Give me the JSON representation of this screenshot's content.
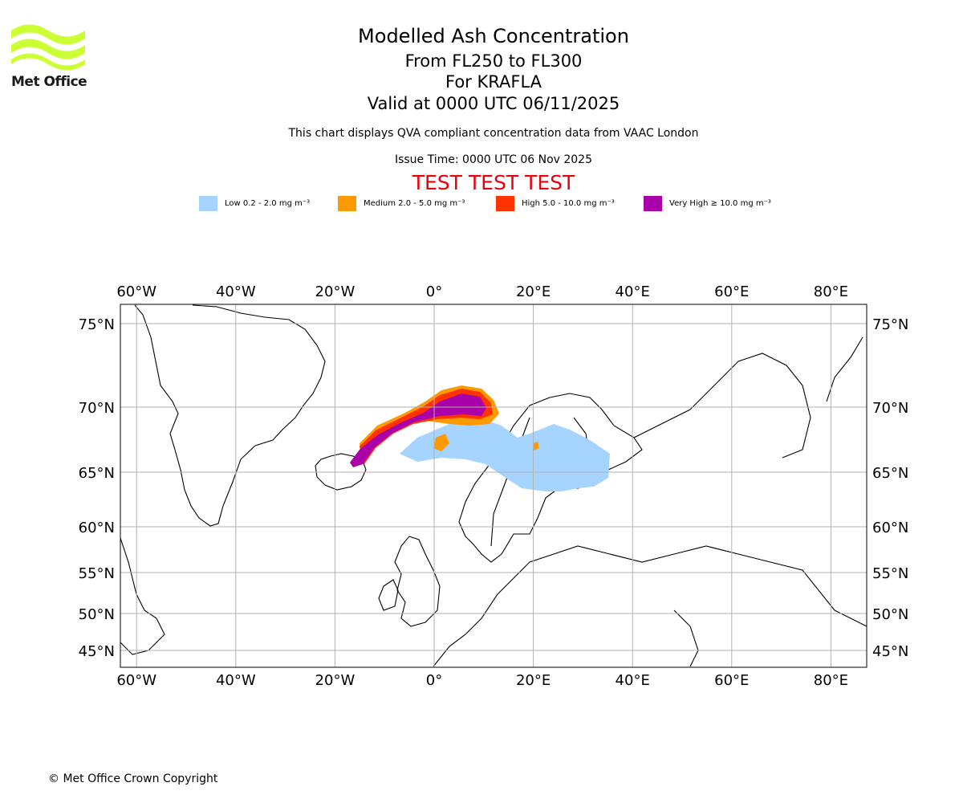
{
  "header": {
    "title": "Modelled Ash Concentration",
    "level_range": "From FL250 to FL300",
    "volcano": "For KRAFLA",
    "valid_time": "Valid at 0000 UTC 06/11/2025",
    "description": "This chart displays QVA compliant concentration data from VAAC London",
    "issue_time": "Issue Time: 0000 UTC 06 Nov 2025",
    "test_banner": "TEST TEST TEST"
  },
  "logo": {
    "text": "Met Office",
    "icon": "met-office-waves-logo",
    "color": "#ccff33"
  },
  "legend": [
    {
      "label": "Low 0.2 - 2.0 mg m⁻³",
      "color": "#a4d4ff"
    },
    {
      "label": "Medium 2.0 - 5.0 mg m⁻³",
      "color": "#ff9900"
    },
    {
      "label": "High 5.0 - 10.0 mg m⁻³",
      "color": "#ff3300"
    },
    {
      "label": "Very High ≥ 10.0 mg m⁻³",
      "color": "#aa00aa"
    }
  ],
  "map": {
    "lon_ticks": [
      {
        "value": -60,
        "label": "60°W"
      },
      {
        "value": -40,
        "label": "40°W"
      },
      {
        "value": -20,
        "label": "20°W"
      },
      {
        "value": 0,
        "label": "0°"
      },
      {
        "value": 20,
        "label": "20°E"
      },
      {
        "value": 40,
        "label": "40°E"
      },
      {
        "value": 60,
        "label": "60°E"
      },
      {
        "value": 80,
        "label": "80°E"
      }
    ],
    "lat_ticks": [
      {
        "value": 75,
        "label": "75°N"
      },
      {
        "value": 70,
        "label": "70°N"
      },
      {
        "value": 65,
        "label": "65°N"
      },
      {
        "value": 60,
        "label": "60°N"
      },
      {
        "value": 55,
        "label": "55°N"
      },
      {
        "value": 50,
        "label": "50°N"
      },
      {
        "value": 45,
        "label": "45°N"
      }
    ]
  },
  "footer": {
    "copyright": "© Met Office Crown Copyright"
  }
}
